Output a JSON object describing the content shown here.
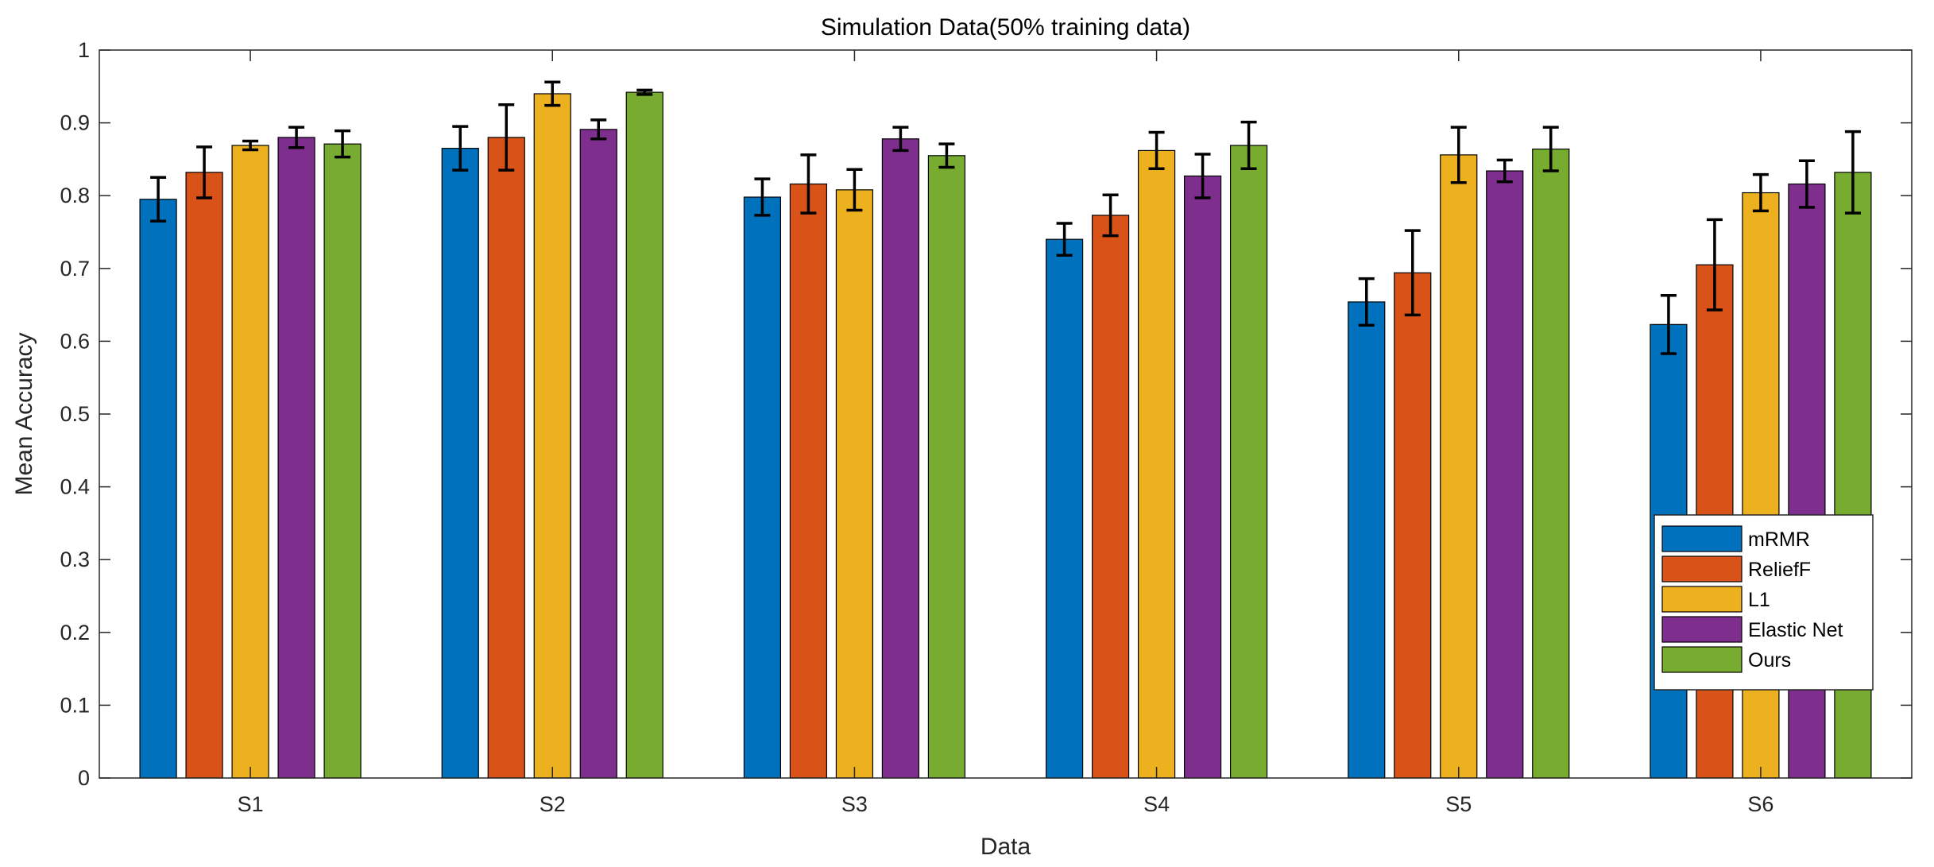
{
  "chart_data": {
    "type": "bar",
    "title": "Simulation Data(50% training data)",
    "xlabel": "Data",
    "ylabel": "Mean Accuracy",
    "ylim": [
      0,
      1
    ],
    "yticks": [
      0,
      0.1,
      0.2,
      0.3,
      0.4,
      0.5,
      0.6,
      0.7,
      0.8,
      0.9,
      1
    ],
    "ytick_labels": [
      "0",
      "0.1",
      "0.2",
      "0.3",
      "0.4",
      "0.5",
      "0.6",
      "0.7",
      "0.8",
      "0.9",
      "1"
    ],
    "categories": [
      "S1",
      "S2",
      "S3",
      "S4",
      "S5",
      "S6"
    ],
    "grid": false,
    "legend_position": "bottom-right",
    "series": [
      {
        "name": "mRMR",
        "color": "#0072BD",
        "values": [
          0.795,
          0.865,
          0.798,
          0.74,
          0.654,
          0.623
        ],
        "errors": [
          0.03,
          0.03,
          0.025,
          0.022,
          0.032,
          0.04
        ]
      },
      {
        "name": "ReliefF",
        "color": "#D95319",
        "values": [
          0.832,
          0.88,
          0.816,
          0.773,
          0.694,
          0.705
        ],
        "errors": [
          0.035,
          0.045,
          0.04,
          0.028,
          0.058,
          0.062
        ]
      },
      {
        "name": "L1",
        "color": "#EDB120",
        "values": [
          0.869,
          0.94,
          0.808,
          0.862,
          0.856,
          0.804
        ],
        "errors": [
          0.006,
          0.016,
          0.028,
          0.025,
          0.038,
          0.025
        ]
      },
      {
        "name": "Elastic Net",
        "color": "#7E2F8E",
        "values": [
          0.88,
          0.891,
          0.878,
          0.827,
          0.834,
          0.816
        ],
        "errors": [
          0.014,
          0.013,
          0.016,
          0.03,
          0.015,
          0.032
        ]
      },
      {
        "name": "Ours",
        "color": "#77AC30",
        "values": [
          0.871,
          0.942,
          0.855,
          0.869,
          0.864,
          0.832
        ],
        "errors": [
          0.018,
          0.003,
          0.016,
          0.032,
          0.03,
          0.056
        ]
      }
    ]
  }
}
